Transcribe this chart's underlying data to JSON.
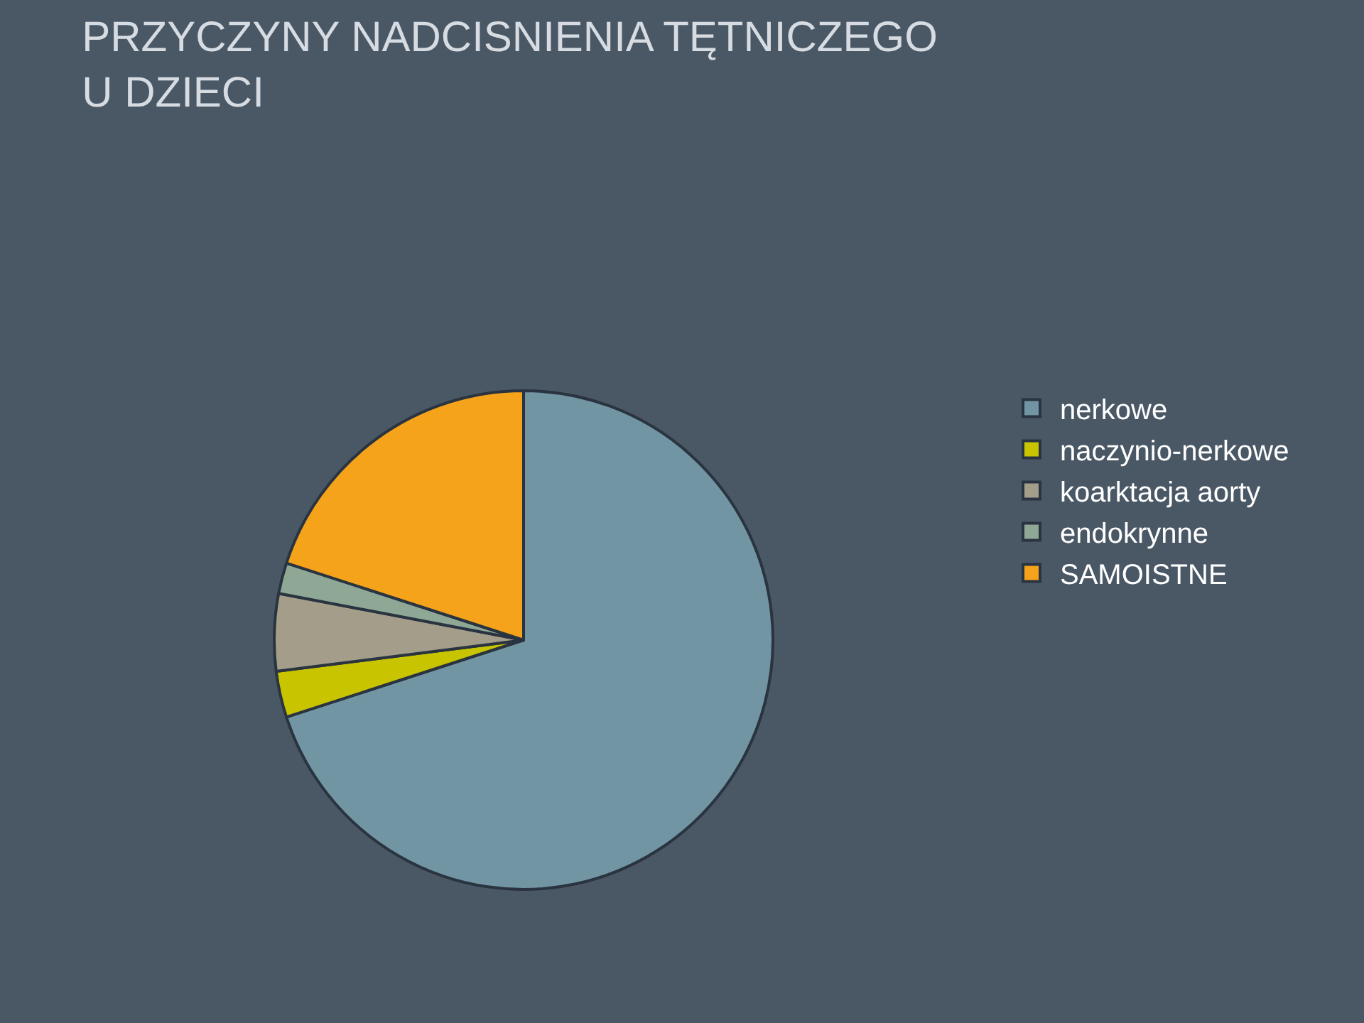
{
  "chart_data": {
    "type": "pie",
    "title": "PRZYCZYNY NADCISNIENIA TĘTNICZEGO\nU DZIECI",
    "categories": [
      "nerkowe",
      "naczynio-nerkowe",
      "koarktacja aorty",
      "endokrynne",
      "SAMOISTNE"
    ],
    "values": [
      70,
      3,
      5,
      2,
      20
    ],
    "colors": [
      "#7295a3",
      "#c8c400",
      "#a39d8a",
      "#8fa896",
      "#f5a31a"
    ],
    "legend": "right"
  }
}
